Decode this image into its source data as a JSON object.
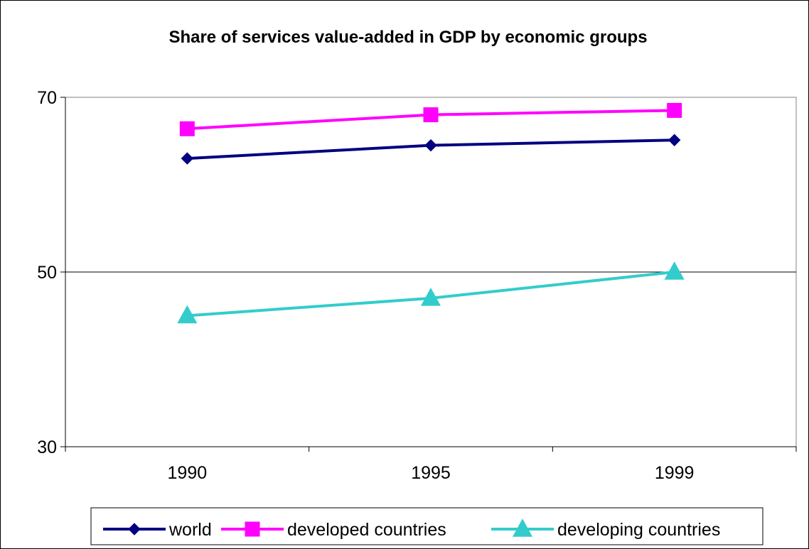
{
  "chart_data": {
    "type": "line",
    "title": "Share of services value-added in GDP by economic groups",
    "xlabel": "",
    "ylabel": "",
    "categories": [
      "1990",
      "1995",
      "1999"
    ],
    "ylim": [
      30,
      70
    ],
    "yticks": [
      "30",
      "50",
      "70"
    ],
    "grid": true,
    "legend": "bottom",
    "series": [
      {
        "name": "world",
        "values": [
          63.0,
          64.5,
          65.1
        ],
        "color": "#000080",
        "marker": "diamond"
      },
      {
        "name": "developed countries",
        "values": [
          66.4,
          68.0,
          68.5
        ],
        "color": "#ff00ff",
        "marker": "square"
      },
      {
        "name": "developing countries",
        "values": [
          45.0,
          47.0,
          50.0
        ],
        "color": "#33cccc",
        "marker": "triangle"
      }
    ]
  }
}
